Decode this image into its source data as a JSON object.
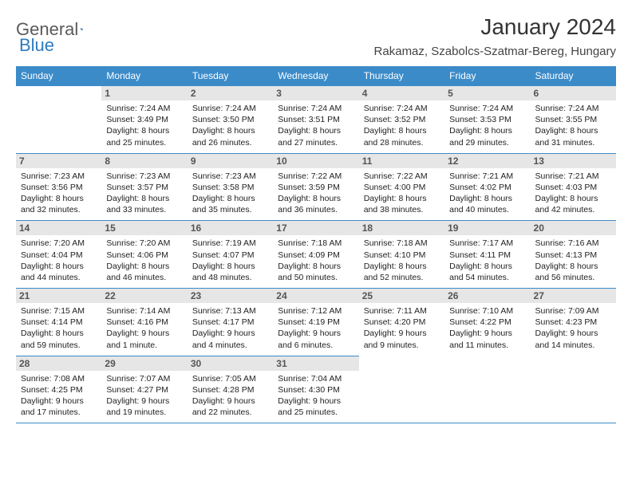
{
  "logo": {
    "text1": "General",
    "text2": "Blue"
  },
  "header": {
    "title": "January 2024",
    "location": "Rakamaz, Szabolcs-Szatmar-Bereg, Hungary"
  },
  "colors": {
    "header_bg": "#3b8bc9",
    "header_text": "#ffffff",
    "daynum_bg": "#e6e6e6",
    "border": "#3b8bc9"
  },
  "weekdays": [
    "Sunday",
    "Monday",
    "Tuesday",
    "Wednesday",
    "Thursday",
    "Friday",
    "Saturday"
  ],
  "weeks": [
    [
      null,
      {
        "n": "1",
        "sunrise": "Sunrise: 7:24 AM",
        "sunset": "Sunset: 3:49 PM",
        "daylight": "Daylight: 8 hours and 25 minutes."
      },
      {
        "n": "2",
        "sunrise": "Sunrise: 7:24 AM",
        "sunset": "Sunset: 3:50 PM",
        "daylight": "Daylight: 8 hours and 26 minutes."
      },
      {
        "n": "3",
        "sunrise": "Sunrise: 7:24 AM",
        "sunset": "Sunset: 3:51 PM",
        "daylight": "Daylight: 8 hours and 27 minutes."
      },
      {
        "n": "4",
        "sunrise": "Sunrise: 7:24 AM",
        "sunset": "Sunset: 3:52 PM",
        "daylight": "Daylight: 8 hours and 28 minutes."
      },
      {
        "n": "5",
        "sunrise": "Sunrise: 7:24 AM",
        "sunset": "Sunset: 3:53 PM",
        "daylight": "Daylight: 8 hours and 29 minutes."
      },
      {
        "n": "6",
        "sunrise": "Sunrise: 7:24 AM",
        "sunset": "Sunset: 3:55 PM",
        "daylight": "Daylight: 8 hours and 31 minutes."
      }
    ],
    [
      {
        "n": "7",
        "sunrise": "Sunrise: 7:23 AM",
        "sunset": "Sunset: 3:56 PM",
        "daylight": "Daylight: 8 hours and 32 minutes."
      },
      {
        "n": "8",
        "sunrise": "Sunrise: 7:23 AM",
        "sunset": "Sunset: 3:57 PM",
        "daylight": "Daylight: 8 hours and 33 minutes."
      },
      {
        "n": "9",
        "sunrise": "Sunrise: 7:23 AM",
        "sunset": "Sunset: 3:58 PM",
        "daylight": "Daylight: 8 hours and 35 minutes."
      },
      {
        "n": "10",
        "sunrise": "Sunrise: 7:22 AM",
        "sunset": "Sunset: 3:59 PM",
        "daylight": "Daylight: 8 hours and 36 minutes."
      },
      {
        "n": "11",
        "sunrise": "Sunrise: 7:22 AM",
        "sunset": "Sunset: 4:00 PM",
        "daylight": "Daylight: 8 hours and 38 minutes."
      },
      {
        "n": "12",
        "sunrise": "Sunrise: 7:21 AM",
        "sunset": "Sunset: 4:02 PM",
        "daylight": "Daylight: 8 hours and 40 minutes."
      },
      {
        "n": "13",
        "sunrise": "Sunrise: 7:21 AM",
        "sunset": "Sunset: 4:03 PM",
        "daylight": "Daylight: 8 hours and 42 minutes."
      }
    ],
    [
      {
        "n": "14",
        "sunrise": "Sunrise: 7:20 AM",
        "sunset": "Sunset: 4:04 PM",
        "daylight": "Daylight: 8 hours and 44 minutes."
      },
      {
        "n": "15",
        "sunrise": "Sunrise: 7:20 AM",
        "sunset": "Sunset: 4:06 PM",
        "daylight": "Daylight: 8 hours and 46 minutes."
      },
      {
        "n": "16",
        "sunrise": "Sunrise: 7:19 AM",
        "sunset": "Sunset: 4:07 PM",
        "daylight": "Daylight: 8 hours and 48 minutes."
      },
      {
        "n": "17",
        "sunrise": "Sunrise: 7:18 AM",
        "sunset": "Sunset: 4:09 PM",
        "daylight": "Daylight: 8 hours and 50 minutes."
      },
      {
        "n": "18",
        "sunrise": "Sunrise: 7:18 AM",
        "sunset": "Sunset: 4:10 PM",
        "daylight": "Daylight: 8 hours and 52 minutes."
      },
      {
        "n": "19",
        "sunrise": "Sunrise: 7:17 AM",
        "sunset": "Sunset: 4:11 PM",
        "daylight": "Daylight: 8 hours and 54 minutes."
      },
      {
        "n": "20",
        "sunrise": "Sunrise: 7:16 AM",
        "sunset": "Sunset: 4:13 PM",
        "daylight": "Daylight: 8 hours and 56 minutes."
      }
    ],
    [
      {
        "n": "21",
        "sunrise": "Sunrise: 7:15 AM",
        "sunset": "Sunset: 4:14 PM",
        "daylight": "Daylight: 8 hours and 59 minutes."
      },
      {
        "n": "22",
        "sunrise": "Sunrise: 7:14 AM",
        "sunset": "Sunset: 4:16 PM",
        "daylight": "Daylight: 9 hours and 1 minute."
      },
      {
        "n": "23",
        "sunrise": "Sunrise: 7:13 AM",
        "sunset": "Sunset: 4:17 PM",
        "daylight": "Daylight: 9 hours and 4 minutes."
      },
      {
        "n": "24",
        "sunrise": "Sunrise: 7:12 AM",
        "sunset": "Sunset: 4:19 PM",
        "daylight": "Daylight: 9 hours and 6 minutes."
      },
      {
        "n": "25",
        "sunrise": "Sunrise: 7:11 AM",
        "sunset": "Sunset: 4:20 PM",
        "daylight": "Daylight: 9 hours and 9 minutes."
      },
      {
        "n": "26",
        "sunrise": "Sunrise: 7:10 AM",
        "sunset": "Sunset: 4:22 PM",
        "daylight": "Daylight: 9 hours and 11 minutes."
      },
      {
        "n": "27",
        "sunrise": "Sunrise: 7:09 AM",
        "sunset": "Sunset: 4:23 PM",
        "daylight": "Daylight: 9 hours and 14 minutes."
      }
    ],
    [
      {
        "n": "28",
        "sunrise": "Sunrise: 7:08 AM",
        "sunset": "Sunset: 4:25 PM",
        "daylight": "Daylight: 9 hours and 17 minutes."
      },
      {
        "n": "29",
        "sunrise": "Sunrise: 7:07 AM",
        "sunset": "Sunset: 4:27 PM",
        "daylight": "Daylight: 9 hours and 19 minutes."
      },
      {
        "n": "30",
        "sunrise": "Sunrise: 7:05 AM",
        "sunset": "Sunset: 4:28 PM",
        "daylight": "Daylight: 9 hours and 22 minutes."
      },
      {
        "n": "31",
        "sunrise": "Sunrise: 7:04 AM",
        "sunset": "Sunset: 4:30 PM",
        "daylight": "Daylight: 9 hours and 25 minutes."
      },
      null,
      null,
      null
    ]
  ]
}
